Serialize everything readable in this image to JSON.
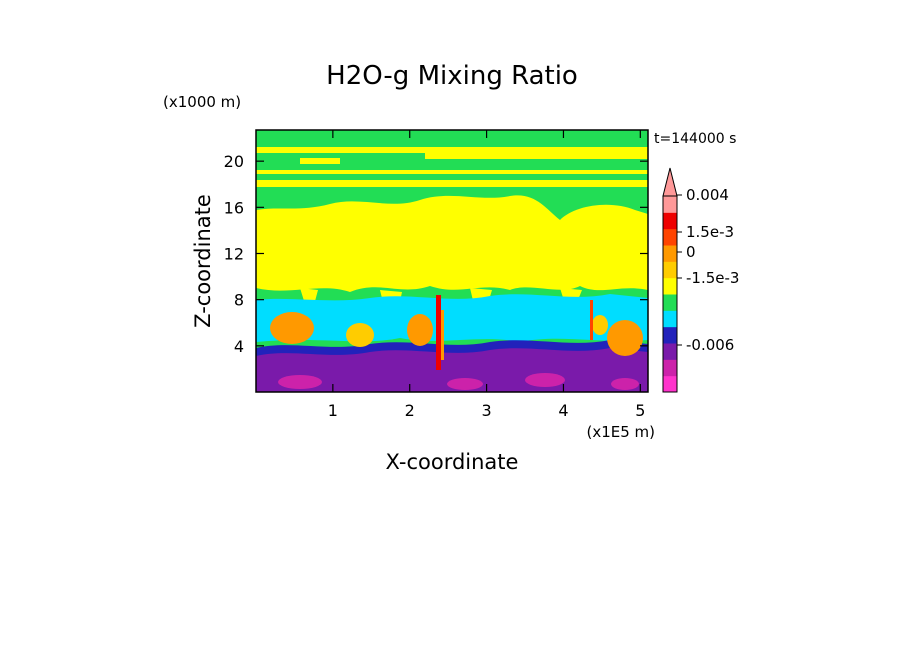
{
  "chart_data": {
    "type": "heatmap",
    "title": "H2O-g Mixing Ratio",
    "xlabel": "X-coordinate",
    "ylabel": "Z-coordinate",
    "x_unit": "(x1E5 m)",
    "y_unit": "(x1000 m)",
    "time_label": "t=144000 s",
    "xlim": [
      0,
      5.1
    ],
    "ylim": [
      0,
      22.7
    ],
    "x_ticks": [
      1,
      2,
      3,
      4,
      5
    ],
    "y_ticks": [
      4,
      8,
      12,
      16,
      20
    ],
    "colorbar": {
      "labels": [
        {
          "text": "0.004",
          "value": 0.004
        },
        {
          "text": "1.5e-3",
          "value": 0.0015
        },
        {
          "text": "0",
          "value": 0
        },
        {
          "text": "-1.5e-3",
          "value": -0.0015
        },
        {
          "text": "-0.006",
          "value": -0.006
        }
      ],
      "colors": [
        "#ff33cc",
        "#cc22aa",
        "#7a1aaa",
        "#2222bb",
        "#00ddff",
        "#22dd55",
        "#ffff00",
        "#ffcc00",
        "#ff9900",
        "#ff4400",
        "#ee0000",
        "#ff9999"
      ],
      "extend": "max"
    },
    "field_description": [
      {
        "band": "lowest layer",
        "z_range": [
          0,
          3
        ],
        "dominant": "-0.006 (purple/magenta)"
      },
      {
        "band": "lower layer",
        "z_range": [
          3,
          8
        ],
        "dominant": "0.004 to 1.5e-3 (orange plumes) and -1.5e-3 (blue/cyan)"
      },
      {
        "band": "mid layer",
        "z_range": [
          8,
          17
        ],
        "dominant": "0 (yellow)"
      },
      {
        "band": "upper layer",
        "z_range": [
          17,
          22.7
        ],
        "dominant": "0 (green/yellow stripes)"
      }
    ],
    "grid": false,
    "legend": "right"
  }
}
